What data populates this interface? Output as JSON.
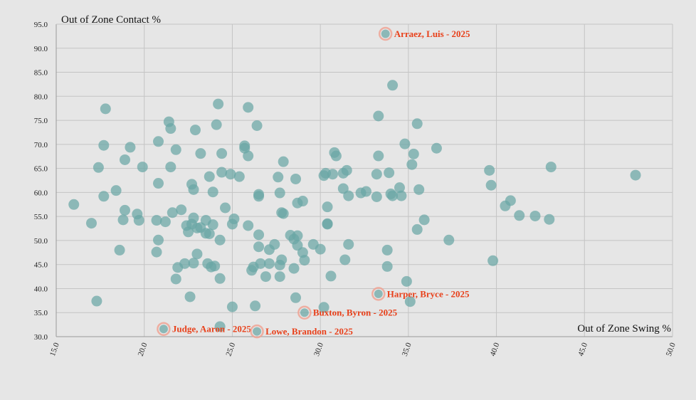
{
  "chart_data": {
    "type": "scatter",
    "xlabel": "Out of Zone Swing %",
    "ylabel": "Out of Zone Contact %",
    "xlim": [
      15,
      50
    ],
    "ylim": [
      30,
      95
    ],
    "x_ticks": [
      "15.0",
      "20.0",
      "25.0",
      "30.0",
      "35.0",
      "40.0",
      "45.0",
      "50.0"
    ],
    "y_ticks": [
      "30.0",
      "35.0",
      "40.0",
      "45.0",
      "50.0",
      "55.0",
      "60.0",
      "65.0",
      "70.0",
      "75.0",
      "80.0",
      "85.0",
      "90.0",
      "95.0"
    ],
    "grid": true,
    "colors": {
      "point": "#6aa6a5",
      "highlight_label": "#e8401a",
      "highlight_ring": "#f0a090",
      "background": "#e6e6e6"
    },
    "highlighted": [
      {
        "label": "Arraez, Luis - 2025",
        "x": 33.7,
        "y": 93.0
      },
      {
        "label": "Harper, Bryce - 2025",
        "x": 33.3,
        "y": 38.9
      },
      {
        "label": "Buxton, Byron - 2025",
        "x": 29.1,
        "y": 35.0
      },
      {
        "label": "Judge, Aaron - 2025",
        "x": 21.1,
        "y": 31.6
      },
      {
        "label": "Lowe, Brandon - 2025",
        "x": 26.4,
        "y": 31.1
      }
    ],
    "points": [
      [
        16.0,
        57.5
      ],
      [
        17.0,
        53.6
      ],
      [
        17.3,
        37.4
      ],
      [
        17.4,
        65.2
      ],
      [
        17.7,
        59.2
      ],
      [
        17.7,
        69.8
      ],
      [
        17.8,
        77.4
      ],
      [
        18.4,
        60.4
      ],
      [
        18.6,
        48.0
      ],
      [
        18.8,
        54.3
      ],
      [
        18.9,
        56.3
      ],
      [
        18.9,
        66.8
      ],
      [
        19.2,
        69.4
      ],
      [
        19.6,
        55.5
      ],
      [
        19.7,
        54.2
      ],
      [
        19.9,
        65.3
      ],
      [
        20.7,
        54.2
      ],
      [
        20.7,
        47.6
      ],
      [
        20.8,
        50.1
      ],
      [
        20.8,
        61.9
      ],
      [
        20.8,
        70.6
      ],
      [
        21.2,
        53.9
      ],
      [
        21.4,
        74.7
      ],
      [
        21.5,
        73.3
      ],
      [
        21.5,
        65.3
      ],
      [
        21.6,
        55.8
      ],
      [
        21.8,
        42.0
      ],
      [
        21.8,
        68.9
      ],
      [
        21.9,
        44.4
      ],
      [
        22.1,
        56.4
      ],
      [
        22.3,
        45.2
      ],
      [
        22.4,
        53.1
      ],
      [
        22.5,
        51.8
      ],
      [
        22.6,
        38.3
      ],
      [
        22.7,
        61.7
      ],
      [
        22.7,
        53.4
      ],
      [
        22.8,
        60.6
      ],
      [
        22.8,
        54.7
      ],
      [
        22.8,
        45.3
      ],
      [
        22.9,
        73.0
      ],
      [
        23.0,
        52.6
      ],
      [
        23.0,
        47.2
      ],
      [
        23.2,
        68.1
      ],
      [
        23.2,
        52.7
      ],
      [
        23.5,
        54.2
      ],
      [
        23.5,
        51.5
      ],
      [
        23.6,
        45.2
      ],
      [
        23.7,
        63.3
      ],
      [
        23.7,
        51.4
      ],
      [
        23.8,
        44.5
      ],
      [
        23.9,
        53.3
      ],
      [
        23.9,
        60.1
      ],
      [
        24.0,
        44.7
      ],
      [
        24.1,
        74.1
      ],
      [
        24.2,
        78.4
      ],
      [
        24.3,
        42.1
      ],
      [
        24.3,
        50.1
      ],
      [
        24.3,
        32.1
      ],
      [
        24.4,
        68.1
      ],
      [
        24.4,
        64.2
      ],
      [
        24.6,
        56.8
      ],
      [
        24.9,
        63.8
      ],
      [
        25.0,
        36.2
      ],
      [
        25.0,
        53.4
      ],
      [
        25.1,
        54.5
      ],
      [
        25.4,
        63.3
      ],
      [
        25.7,
        69.7
      ],
      [
        25.7,
        69.2
      ],
      [
        25.9,
        77.7
      ],
      [
        25.9,
        67.6
      ],
      [
        25.9,
        53.1
      ],
      [
        26.1,
        43.8
      ],
      [
        26.2,
        44.5
      ],
      [
        26.3,
        36.4
      ],
      [
        26.4,
        73.9
      ],
      [
        26.5,
        59.6
      ],
      [
        26.5,
        59.2
      ],
      [
        26.5,
        51.2
      ],
      [
        26.5,
        48.7
      ],
      [
        26.6,
        45.2
      ],
      [
        26.9,
        42.5
      ],
      [
        27.1,
        45.2
      ],
      [
        27.1,
        48.1
      ],
      [
        27.4,
        49.2
      ],
      [
        27.6,
        63.2
      ],
      [
        27.7,
        44.9
      ],
      [
        27.7,
        42.5
      ],
      [
        27.7,
        59.9
      ],
      [
        27.8,
        46.0
      ],
      [
        27.8,
        55.8
      ],
      [
        27.9,
        55.6
      ],
      [
        27.9,
        66.4
      ],
      [
        28.3,
        51.1
      ],
      [
        28.5,
        50.3
      ],
      [
        28.5,
        44.2
      ],
      [
        28.6,
        62.8
      ],
      [
        28.6,
        38.1
      ],
      [
        28.7,
        51.0
      ],
      [
        28.7,
        57.8
      ],
      [
        28.7,
        49.0
      ],
      [
        29.0,
        47.5
      ],
      [
        29.0,
        58.2
      ],
      [
        29.1,
        45.9
      ],
      [
        29.6,
        49.2
      ],
      [
        30.0,
        48.2
      ],
      [
        30.2,
        63.5
      ],
      [
        30.2,
        36.1
      ],
      [
        30.3,
        64.0
      ],
      [
        30.4,
        57.0
      ],
      [
        30.4,
        53.4
      ],
      [
        30.4,
        53.5
      ],
      [
        30.6,
        42.6
      ],
      [
        30.7,
        63.8
      ],
      [
        30.8,
        68.3
      ],
      [
        30.9,
        67.6
      ],
      [
        31.3,
        64.0
      ],
      [
        31.3,
        60.8
      ],
      [
        31.4,
        46.0
      ],
      [
        31.5,
        64.6
      ],
      [
        31.6,
        59.3
      ],
      [
        31.6,
        49.2
      ],
      [
        32.3,
        59.9
      ],
      [
        32.6,
        60.2
      ],
      [
        33.2,
        63.8
      ],
      [
        33.2,
        59.1
      ],
      [
        33.3,
        75.9
      ],
      [
        33.3,
        67.6
      ],
      [
        33.8,
        48.0
      ],
      [
        33.8,
        44.6
      ],
      [
        33.9,
        64.1
      ],
      [
        34.0,
        59.7
      ],
      [
        34.1,
        82.3
      ],
      [
        34.1,
        59.3
      ],
      [
        34.5,
        61.0
      ],
      [
        34.6,
        59.3
      ],
      [
        34.8,
        70.1
      ],
      [
        34.9,
        41.5
      ],
      [
        35.1,
        37.3
      ],
      [
        35.2,
        65.8
      ],
      [
        35.3,
        68.0
      ],
      [
        35.5,
        52.3
      ],
      [
        35.5,
        74.3
      ],
      [
        35.6,
        60.6
      ],
      [
        35.9,
        54.3
      ],
      [
        36.6,
        69.2
      ],
      [
        37.3,
        50.1
      ],
      [
        39.6,
        64.6
      ],
      [
        39.7,
        61.5
      ],
      [
        39.8,
        45.8
      ],
      [
        40.5,
        57.2
      ],
      [
        40.8,
        58.3
      ],
      [
        41.3,
        55.2
      ],
      [
        42.2,
        55.1
      ],
      [
        43.0,
        54.4
      ],
      [
        43.1,
        65.3
      ],
      [
        47.9,
        63.6
      ]
    ]
  }
}
